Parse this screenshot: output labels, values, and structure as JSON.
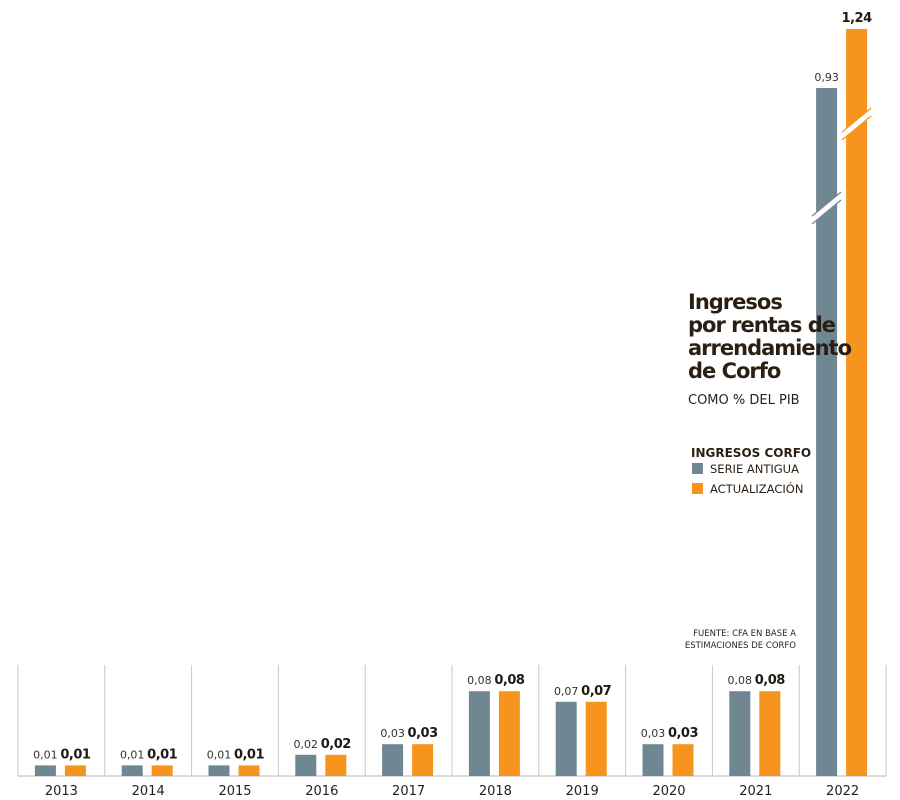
{
  "chart_data": {
    "type": "bar",
    "title": "Ingresos por rentas de arrendamiento de Corfo",
    "title_lines": [
      "Ingresos",
      "por rentas de",
      "arrendamiento",
      "de Corfo"
    ],
    "subtitle": "COMO % DEL PIB",
    "legend_title": "INGRESOS CORFO",
    "categories": [
      "2013",
      "2014",
      "2015",
      "2016",
      "2017",
      "2018",
      "2019",
      "2020",
      "2021",
      "2022"
    ],
    "series": [
      {
        "name": "SERIE ANTIGUA",
        "color": "#6f8792",
        "values": [
          0.01,
          0.01,
          0.01,
          0.02,
          0.03,
          0.08,
          0.07,
          0.03,
          0.08,
          0.93
        ],
        "labels": [
          "0,01",
          "0,01",
          "0,01",
          "0,02",
          "0,03",
          "0,08",
          "0,07",
          "0,03",
          "0,08",
          "0,93"
        ]
      },
      {
        "name": "ACTUALIZACIÓN",
        "color": "#f7941d",
        "values": [
          0.01,
          0.01,
          0.01,
          0.02,
          0.03,
          0.08,
          0.07,
          0.03,
          0.08,
          1.24
        ],
        "labels": [
          "0,01",
          "0,01",
          "0,01",
          "0,02",
          "0,03",
          "0,08",
          "0,07",
          "0,03",
          "0,08",
          "1,24"
        ]
      }
    ],
    "axis_break": true,
    "legend_position": "right",
    "source_lines": [
      "FUENTE: CFA EN BASE A",
      "ESTIMACIONES DE CORFO"
    ]
  }
}
